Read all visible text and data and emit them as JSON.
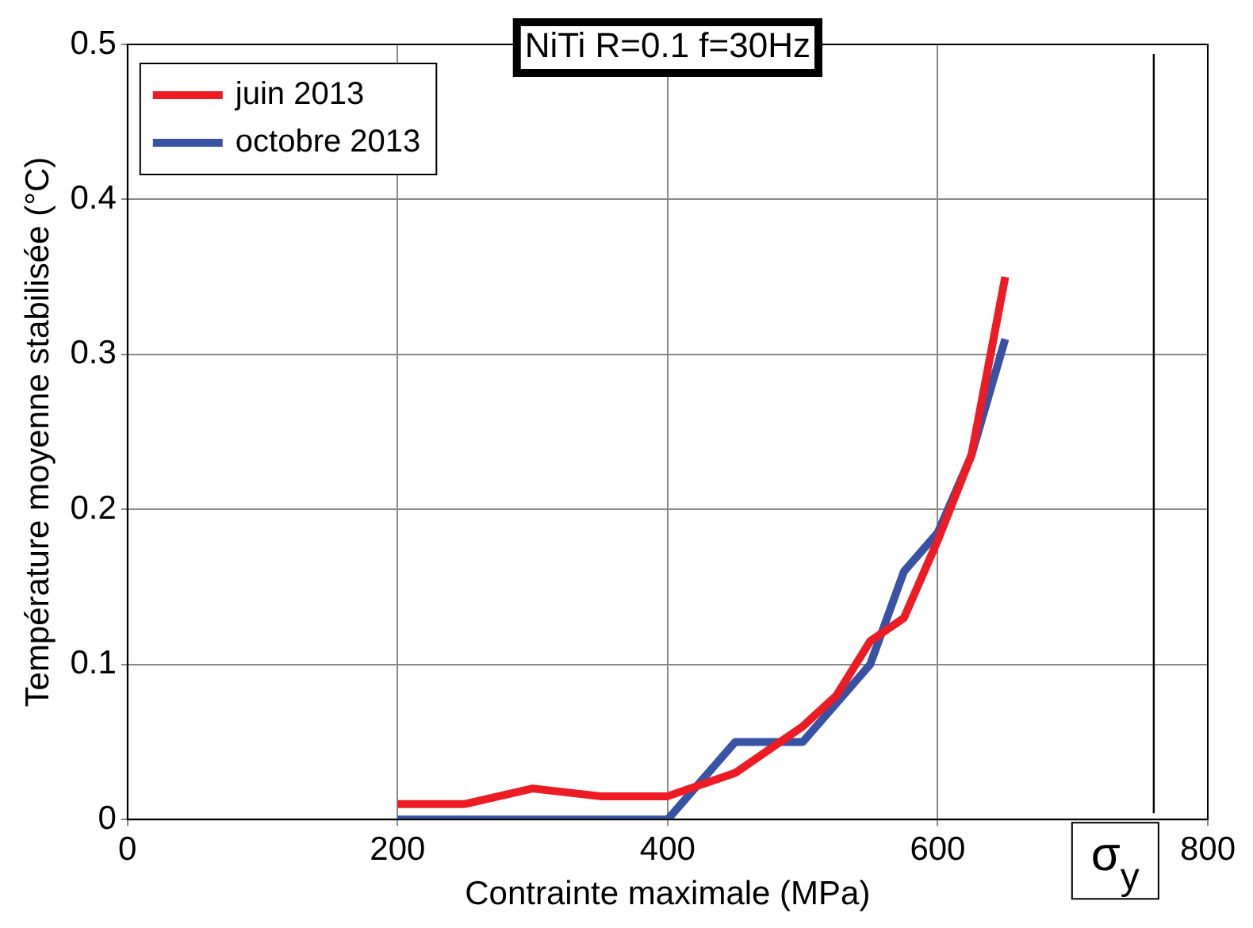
{
  "chart_data": {
    "type": "line",
    "title": "NiTi R=0.1 f=30Hz",
    "xlabel": "Contrainte maximale (MPa)",
    "ylabel": "Température moyenne stabilisée (°C)",
    "series": [
      {
        "name": "juin 2013",
        "color": "#ed1c24",
        "x": [
          200,
          250,
          300,
          350,
          400,
          450,
          500,
          525,
          550,
          575,
          600,
          625,
          650
        ],
        "values": [
          0.01,
          0.01,
          0.02,
          0.015,
          0.015,
          0.03,
          0.06,
          0.08,
          0.115,
          0.13,
          0.18,
          0.235,
          0.35
        ]
      },
      {
        "name": "octobre 2013",
        "color": "#3953a4",
        "x": [
          200,
          400,
          450,
          500,
          550,
          575,
          600,
          625,
          650
        ],
        "values": [
          0,
          0,
          0.05,
          0.05,
          0.1,
          0.16,
          0.185,
          0.235,
          0.31
        ]
      }
    ],
    "xlim": [
      0,
      800
    ],
    "xticks": [
      0,
      200,
      400,
      600,
      800
    ],
    "ylim": [
      0,
      0.5
    ],
    "yticks": [
      0,
      0.1,
      0.2,
      0.3,
      0.4,
      0.5
    ],
    "ref_lines": [
      {
        "axis": "x",
        "value": 760,
        "label": "σ$_{y}$",
        "color": "#000000"
      }
    ],
    "grid": true,
    "legend": "top left",
    "marker": "none",
    "line_style": "solid"
  }
}
